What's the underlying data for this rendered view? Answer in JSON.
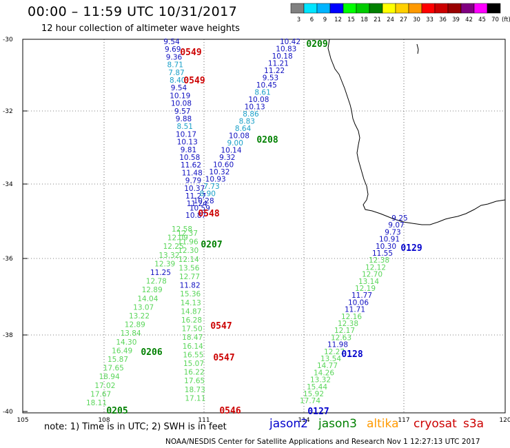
{
  "header": {
    "title": "00:00 – 11:59 UTC 10/31/2017",
    "subtitle": "12 hour collection of altimeter wave heights"
  },
  "legend": {
    "units": "(ft)",
    "bins": [
      {
        "label": "3",
        "color": "#808080"
      },
      {
        "label": "6",
        "color": "#00e5ff"
      },
      {
        "label": "9",
        "color": "#00b4ff"
      },
      {
        "label": "12",
        "color": "#0000ff"
      },
      {
        "label": "15",
        "color": "#00ff00"
      },
      {
        "label": "18",
        "color": "#00cc00"
      },
      {
        "label": "21",
        "color": "#008000"
      },
      {
        "label": "24",
        "color": "#ffff00"
      },
      {
        "label": "27",
        "color": "#ffd000"
      },
      {
        "label": "30",
        "color": "#ff9900"
      },
      {
        "label": "33",
        "color": "#ff0000"
      },
      {
        "label": "36",
        "color": "#cc0000"
      },
      {
        "label": "39",
        "color": "#990000"
      },
      {
        "label": "42",
        "color": "#800080"
      },
      {
        "label": "45",
        "color": "#ff00ff"
      },
      {
        "label": "70",
        "color": "#000000"
      }
    ]
  },
  "axes": {
    "lat_labels": [
      "-30",
      "-32",
      "-34",
      "-36",
      "-38",
      "-40"
    ],
    "lon_labels": [
      "105",
      "108",
      "111",
      "114",
      "117",
      "120"
    ]
  },
  "colors": {
    "jason2": "#0000cc",
    "jason3": "#008000",
    "altika": "#ff9900",
    "cryosat": "#cc0000",
    "s3a": "#cc0000",
    "light_green": "#5ad65a",
    "cyan": "#1aa0c8",
    "mid_blue": "#1010c0"
  },
  "tracks": [
    {
      "values": [
        "9.54",
        "9.69",
        "9.36",
        "8.71",
        "7.87",
        "8.40",
        "9.54",
        "10.19",
        "10.08",
        "9.57",
        "9.88",
        "8.51",
        "10.17",
        "10.13",
        "9.81",
        "10.58",
        "11.62",
        "11.48",
        "9.79",
        "10.37",
        "11.27",
        "11.24"
      ],
      "colors": [
        "b",
        "b",
        "b",
        "c",
        "c",
        "c",
        "b",
        "b",
        "b",
        "b",
        "b",
        "c",
        "b",
        "b",
        "b",
        "b",
        "b",
        "b",
        "b",
        "b",
        "b",
        "b"
      ]
    },
    {
      "values": [
        "10.42",
        "10.83",
        "10.18",
        "11.21",
        "11.22",
        "9.53",
        "10.45",
        "8.61",
        "10.08",
        "10.13",
        "8.86",
        "8.83",
        "8.64",
        "10.08",
        "9.00",
        "10.14",
        "9.32",
        "10.60",
        "10.32",
        "10.93",
        "7.73",
        "8.90",
        "10.28",
        "10.59",
        "10.87"
      ],
      "colors": [
        "b",
        "b",
        "b",
        "b",
        "b",
        "b",
        "b",
        "c",
        "b",
        "b",
        "c",
        "c",
        "c",
        "b",
        "c",
        "b",
        "b",
        "b",
        "b",
        "b",
        "c",
        "c",
        "b",
        "b",
        "b"
      ]
    },
    {
      "values": [
        "12.58",
        "12.37",
        "12.09",
        "11.96",
        "12.25",
        "12.30",
        "13.32",
        "12.14",
        "12.39",
        "13.56",
        "11.25",
        "12.77",
        "12.78",
        "11.82",
        "12.89",
        "15.36",
        "14.04",
        "14.13",
        "13.07",
        "14.87",
        "13.22",
        "16.28",
        "12.89",
        "17.50",
        "13.84",
        "18.47",
        "14.30",
        "16.14",
        "16.49",
        "16.55",
        "15.87",
        "15.07",
        "17.65",
        "16.22",
        "18.94",
        "17.65",
        "17.02",
        "18.73",
        "17.67",
        "17.11",
        "18.11"
      ],
      "colors": [
        "g",
        "g",
        "g",
        "g",
        "g",
        "g",
        "g",
        "g",
        "g",
        "g",
        "b",
        "g",
        "g",
        "b",
        "g",
        "g",
        "g",
        "g",
        "g",
        "g",
        "g",
        "g",
        "g",
        "g",
        "g",
        "g",
        "g",
        "g",
        "g",
        "g",
        "g",
        "g",
        "g",
        "g",
        "g",
        "g",
        "g",
        "g",
        "g",
        "g",
        "g"
      ]
    },
    {
      "values": [
        "9.25",
        "9.07",
        "9.73",
        "10.91",
        "10.30",
        "11.55",
        "12.38",
        "12.12",
        "12.70",
        "13.14",
        "12.19",
        "11.77",
        "10.06",
        "11.71",
        "12.16",
        "12.38",
        "12.17",
        "12.63",
        "11.98",
        "12.27",
        "13.54",
        "14.77",
        "14.26",
        "13.32",
        "15.44",
        "15.92",
        "17.74"
      ],
      "colors": [
        "b",
        "b",
        "b",
        "b",
        "b",
        "b",
        "g",
        "g",
        "g",
        "g",
        "g",
        "b",
        "b",
        "b",
        "g",
        "g",
        "g",
        "g",
        "b",
        "g",
        "g",
        "g",
        "g",
        "g",
        "g",
        "g",
        "g"
      ]
    }
  ],
  "passes": [
    {
      "label": "0549",
      "sat": "cryosat"
    },
    {
      "label": "0549",
      "sat": "cryosat"
    },
    {
      "label": "0209",
      "sat": "jason3"
    },
    {
      "label": "0208",
      "sat": "jason3"
    },
    {
      "label": "0548",
      "sat": "cryosat"
    },
    {
      "label": "0207",
      "sat": "jason3"
    },
    {
      "label": "0129",
      "sat": "jason2"
    },
    {
      "label": "0547",
      "sat": "cryosat"
    },
    {
      "label": "0206",
      "sat": "jason3"
    },
    {
      "label": "0547",
      "sat": "cryosat"
    },
    {
      "label": "0128",
      "sat": "jason2"
    },
    {
      "label": "0205",
      "sat": "jason3"
    },
    {
      "label": "0546",
      "sat": "cryosat"
    },
    {
      "label": "0127",
      "sat": "jason2"
    }
  ],
  "footer": {
    "note": "note: 1) Time is in UTC; 2) SWH is in feet",
    "satellites": [
      "jason2",
      "jason3",
      "altika",
      "cryosat",
      "s3a"
    ],
    "credit": "NOAA/NESDIS Center for Satellite Applications and Research    Nov  1 12:27:13 UTC 2017"
  }
}
